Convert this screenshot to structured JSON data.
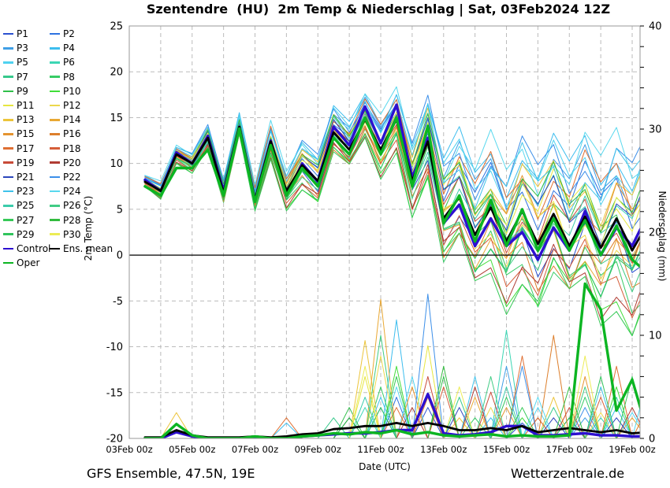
{
  "title": "Szentendre  (HU)  2m Temp & Niederschlag | Sat, 03Feb2024 12Z",
  "footer": {
    "left": "GFS Ensemble, 47.5N, 19E",
    "center": "Date (UTC)",
    "right": "Wetterzentrale.de"
  },
  "axes": {
    "ylabel_left": "2m Temp (°C)",
    "ylabel_right": "Niederschlag (mm)",
    "temp_ticks": [
      25,
      20,
      15,
      10,
      5,
      0,
      -5,
      -10,
      -15,
      -20
    ],
    "precip_ticks": [
      40,
      30,
      20,
      10,
      0
    ],
    "precip_minor_step": 2,
    "x_ticks": [
      {
        "label": "03Feb 00z",
        "day": 0
      },
      {
        "label": "05Feb 00z",
        "day": 2
      },
      {
        "label": "07Feb 00z",
        "day": 4
      },
      {
        "label": "09Feb 00z",
        "day": 6
      },
      {
        "label": "11Feb 00z",
        "day": 8
      },
      {
        "label": "13Feb 00z",
        "day": 10
      },
      {
        "label": "15Feb 00z",
        "day": 12
      },
      {
        "label": "17Feb 00z",
        "day": 14
      },
      {
        "label": "19Feb 00z",
        "day": 16
      }
    ],
    "x_grid_step_days": 1,
    "x_range_days": [
      0,
      16.25
    ]
  },
  "chart_data": {
    "type": "line",
    "x": [
      "03Feb 12z",
      "04Feb 00z",
      "04Feb 12z",
      "05Feb 00z",
      "05Feb 12z",
      "06Feb 00z",
      "06Feb 12z",
      "07Feb 00z",
      "07Feb 12z",
      "08Feb 00z",
      "08Feb 12z",
      "09Feb 00z",
      "09Feb 12z",
      "10Feb 00z",
      "10Feb 12z",
      "11Feb 00z",
      "11Feb 12z",
      "12Feb 00z",
      "12Feb 12z",
      "13Feb 00z",
      "13Feb 12z",
      "14Feb 00z",
      "14Feb 12z",
      "15Feb 00z",
      "15Feb 12z",
      "16Feb 00z",
      "16Feb 12z",
      "17Feb 00z",
      "17Feb 12z",
      "18Feb 00z",
      "18Feb 12z",
      "19Feb 00z",
      "19Feb 12z"
    ],
    "x_start_day": 0.5,
    "x_step_days": 0.5,
    "temp": {
      "ylim": [
        -20,
        25
      ],
      "grid_step": 5,
      "zero_line": true,
      "series": [
        {
          "name": "Ens. mean",
          "color": "#000000",
          "width": 2.8,
          "values": [
            8,
            7,
            11,
            10,
            12.8,
            6.8,
            14,
            6,
            12.4,
            7,
            9.8,
            8.1,
            13.4,
            11.5,
            14.8,
            11.5,
            14.8,
            8.1,
            12.4,
            4,
            6.3,
            2.2,
            5.2,
            1.5,
            4.8,
            1.2,
            4.5,
            1,
            4.2,
            0.8,
            4,
            0.5,
            3.5
          ]
        },
        {
          "name": "Control",
          "color": "#2d0fd0",
          "width": 3.4,
          "values": [
            8.2,
            7,
            11.2,
            10,
            13,
            7,
            14,
            6,
            12.5,
            6.5,
            10,
            8,
            14,
            12,
            16.2,
            12.2,
            16.4,
            8.5,
            12.8,
            3.5,
            5.5,
            1,
            4,
            1,
            2.5,
            -0.5,
            3,
            0.5,
            4.8,
            0,
            3,
            1,
            4.5
          ]
        },
        {
          "name": "Oper",
          "color": "#0cb522",
          "width": 3.4,
          "values": [
            7.5,
            6.5,
            9.5,
            9.5,
            11.5,
            6.5,
            13.8,
            5.8,
            12,
            6.5,
            9.5,
            7.5,
            12.8,
            11,
            15,
            11,
            15,
            7.5,
            14.1,
            3.5,
            6.5,
            1.5,
            6,
            1,
            5,
            0.5,
            4,
            0.5,
            3.8,
            0,
            3.2,
            -0.5,
            -2
          ]
        }
      ],
      "member_model": "value[i] = ens_mean[i] + temp_factor*spread_profile[i] + wiggle_amp*spread_profile[i]*sin(0.9*i + temp_phase)",
      "spread_profile": [
        0.5,
        0.7,
        0.7,
        0.8,
        1,
        1,
        1,
        1.2,
        1.5,
        1.5,
        2,
        2,
        2,
        2,
        2,
        2.5,
        2.5,
        3,
        3.5,
        4.5,
        5,
        5,
        5.5,
        5.5,
        6,
        6,
        6,
        6,
        6.5,
        6.5,
        7,
        7,
        7
      ],
      "wiggle_amp": 0.35
    },
    "precip": {
      "ylim": [
        0,
        40
      ],
      "series": [
        {
          "name": "Ens. mean",
          "color": "#000000",
          "width": 2.8,
          "values": [
            0.1,
            0.1,
            0.8,
            0.3,
            0.1,
            0.1,
            0.1,
            0.2,
            0.1,
            0.2,
            0.4,
            0.5,
            0.9,
            1,
            1.2,
            1.2,
            1.5,
            1.2,
            1.5,
            1.2,
            0.8,
            0.8,
            1,
            0.8,
            1.2,
            0.6,
            0.8,
            1,
            0.8,
            0.6,
            0.8,
            0.5,
            0.6
          ]
        },
        {
          "name": "Control",
          "color": "#2d0fd0",
          "width": 3.4,
          "values": [
            0,
            0,
            0.6,
            0.2,
            0,
            0,
            0,
            0.1,
            0,
            0,
            0.2,
            0.3,
            0.4,
            0.5,
            0.5,
            0.6,
            0.8,
            0.8,
            4.3,
            0.5,
            0.3,
            0.4,
            0.6,
            1.2,
            1.2,
            0.3,
            0.3,
            0.4,
            0.5,
            0.3,
            0.3,
            0.2,
            0.2
          ]
        },
        {
          "name": "Oper",
          "color": "#0cb522",
          "width": 3.4,
          "values": [
            0,
            0,
            1.4,
            0.3,
            0,
            0,
            0,
            0.2,
            0,
            0,
            0.2,
            0.3,
            0.5,
            0.4,
            0.6,
            0.5,
            0.8,
            0.4,
            0.6,
            0.3,
            0.2,
            0.3,
            0.4,
            0.2,
            0.3,
            0.2,
            0.2,
            0.3,
            15,
            12.5,
            2.7,
            5.7,
            0.5
          ]
        }
      ],
      "member_model": "zeros except listed [index, mm] spikes"
    },
    "members": [
      {
        "name": "P1",
        "color": "#2b50d0",
        "temp_factor": -0.3,
        "temp_phase": 0.5,
        "precip_spikes": [
          [
            13,
            2
          ],
          [
            18,
            3
          ],
          [
            24,
            1.5
          ]
        ]
      },
      {
        "name": "P2",
        "color": "#2e72e0",
        "temp_factor": 0.6,
        "temp_phase": 1.2,
        "precip_spikes": [
          [
            16,
            4
          ],
          [
            27,
            2
          ]
        ]
      },
      {
        "name": "P3",
        "color": "#3f9fe6",
        "temp_factor": 0.9,
        "temp_phase": 2.0,
        "precip_spikes": [
          [
            15,
            3
          ],
          [
            23,
            7
          ],
          [
            28,
            2
          ]
        ]
      },
      {
        "name": "P4",
        "color": "#3dbdee",
        "temp_factor": 1.2,
        "temp_phase": 2.6,
        "precip_spikes": [
          [
            9,
            1.5
          ],
          [
            16,
            11.5
          ],
          [
            22,
            2
          ],
          [
            30,
            3
          ]
        ]
      },
      {
        "name": "P5",
        "color": "#4fd2f0",
        "temp_factor": 1.0,
        "temp_phase": 3.1,
        "precip_spikes": [
          [
            17,
            6
          ],
          [
            25,
            3
          ],
          [
            31,
            2.5
          ]
        ]
      },
      {
        "name": "P6",
        "color": "#3cd6b4",
        "temp_factor": 0.4,
        "temp_phase": 3.8,
        "precip_spikes": [
          [
            2,
            1.5
          ],
          [
            14,
            3
          ],
          [
            23,
            10.5
          ],
          [
            29,
            2
          ]
        ]
      },
      {
        "name": "P7",
        "color": "#37c98c",
        "temp_factor": -0.5,
        "temp_phase": 4.2,
        "precip_spikes": [
          [
            12,
            2
          ],
          [
            20,
            4
          ],
          [
            26,
            3
          ]
        ]
      },
      {
        "name": "P8",
        "color": "#38cc66",
        "temp_factor": -0.8,
        "temp_phase": 0.9,
        "precip_spikes": [
          [
            15,
            5
          ],
          [
            21,
            2
          ],
          [
            28,
            4
          ]
        ]
      },
      {
        "name": "P9",
        "color": "#30bf4a",
        "temp_factor": 0.2,
        "temp_phase": 1.7,
        "precip_spikes": [
          [
            13,
            3
          ],
          [
            19,
            6
          ],
          [
            27,
            2
          ]
        ]
      },
      {
        "name": "P10",
        "color": "#40dd38",
        "temp_factor": -1.0,
        "temp_phase": 2.3,
        "precip_spikes": [
          [
            16,
            7
          ],
          [
            24,
            2
          ],
          [
            30,
            5
          ]
        ]
      },
      {
        "name": "P11",
        "color": "#e6e640",
        "temp_factor": 0.5,
        "temp_phase": 2.9,
        "precip_spikes": [
          [
            14,
            6
          ],
          [
            18,
            9
          ],
          [
            25,
            2
          ]
        ]
      },
      {
        "name": "P12",
        "color": "#ecd84c",
        "temp_factor": -0.2,
        "temp_phase": 3.4,
        "precip_spikes": [
          [
            15,
            8
          ],
          [
            22,
            3
          ],
          [
            29,
            2.5
          ]
        ]
      },
      {
        "name": "P13",
        "color": "#ecc43a",
        "temp_factor": 0.7,
        "temp_phase": 4.0,
        "precip_spikes": [
          [
            2,
            2.5
          ],
          [
            14,
            9.5
          ],
          [
            20,
            2
          ],
          [
            26,
            4
          ]
        ]
      },
      {
        "name": "P14",
        "color": "#e9a833",
        "temp_factor": -0.4,
        "temp_phase": 4.6,
        "precip_spikes": [
          [
            15,
            13.5
          ],
          [
            21,
            4
          ],
          [
            31,
            2
          ]
        ]
      },
      {
        "name": "P15",
        "color": "#e59430",
        "temp_factor": 0.3,
        "temp_phase": 5.2,
        "precip_spikes": [
          [
            17,
            5
          ],
          [
            23,
            3
          ],
          [
            28,
            6
          ]
        ]
      },
      {
        "name": "P16",
        "color": "#dd7f2c",
        "temp_factor": -0.6,
        "temp_phase": 0.3,
        "precip_spikes": [
          [
            18,
            4
          ],
          [
            26,
            10
          ],
          [
            32,
            3
          ]
        ]
      },
      {
        "name": "P17",
        "color": "#df6f33",
        "temp_factor": 0.8,
        "temp_phase": 1.1,
        "precip_spikes": [
          [
            9,
            2
          ],
          [
            16,
            3
          ],
          [
            24,
            8
          ],
          [
            30,
            7
          ]
        ]
      },
      {
        "name": "P18",
        "color": "#d55e39",
        "temp_factor": -0.7,
        "temp_phase": 1.9,
        "precip_spikes": [
          [
            19,
            5
          ],
          [
            25,
            2
          ],
          [
            29,
            4
          ]
        ]
      },
      {
        "name": "P19",
        "color": "#c84b38",
        "temp_factor": 0.1,
        "temp_phase": 2.5,
        "precip_spikes": [
          [
            18,
            6
          ],
          [
            22,
            4.5
          ],
          [
            27,
            3
          ]
        ]
      },
      {
        "name": "P20",
        "color": "#b03c34",
        "temp_factor": -0.9,
        "temp_phase": 3.2,
        "precip_spikes": [
          [
            17,
            3
          ],
          [
            21,
            5
          ],
          [
            31,
            3
          ]
        ]
      },
      {
        "name": "P21",
        "color": "#2b46bb",
        "temp_factor": 0.4,
        "temp_phase": 3.9,
        "precip_spikes": [
          [
            20,
            3
          ],
          [
            26,
            2
          ],
          [
            30,
            2
          ]
        ]
      },
      {
        "name": "P22",
        "color": "#3c8fe9",
        "temp_factor": 1.1,
        "temp_phase": 4.4,
        "precip_spikes": [
          [
            18,
            14
          ],
          [
            24,
            7
          ],
          [
            28,
            3
          ]
        ]
      },
      {
        "name": "P23",
        "color": "#3fc2ea",
        "temp_factor": 0.9,
        "temp_phase": 5.0,
        "precip_spikes": [
          [
            15,
            4
          ],
          [
            21,
            6
          ],
          [
            29,
            5
          ]
        ]
      },
      {
        "name": "P24",
        "color": "#58d8ee",
        "temp_factor": 1.2,
        "temp_phase": 0.6,
        "precip_spikes": [
          [
            16,
            5
          ],
          [
            25,
            4
          ],
          [
            32,
            6
          ]
        ]
      },
      {
        "name": "P25",
        "color": "#3bccab",
        "temp_factor": 0.0,
        "temp_phase": 1.4,
        "precip_spikes": [
          [
            14,
            4
          ],
          [
            23,
            5
          ],
          [
            30,
            4
          ]
        ]
      },
      {
        "name": "P26",
        "color": "#41cc85",
        "temp_factor": -0.3,
        "temp_phase": 2.1,
        "precip_spikes": [
          [
            15,
            10
          ],
          [
            22,
            6
          ],
          [
            28,
            5
          ]
        ]
      },
      {
        "name": "P27",
        "color": "#36c957",
        "temp_factor": -1.1,
        "temp_phase": 2.8,
        "precip_spikes": [
          [
            16,
            6
          ],
          [
            24,
            3
          ],
          [
            31,
            6
          ]
        ]
      },
      {
        "name": "P28",
        "color": "#32bb3e",
        "temp_factor": 0.6,
        "temp_phase": 3.5,
        "precip_spikes": [
          [
            13,
            2
          ],
          [
            19,
            7
          ],
          [
            27,
            5
          ]
        ]
      },
      {
        "name": "P29",
        "color": "#31c45c",
        "temp_factor": -0.5,
        "temp_phase": 4.1,
        "precip_spikes": [
          [
            15,
            3
          ],
          [
            23,
            4
          ],
          [
            29,
            6
          ]
        ]
      },
      {
        "name": "P30",
        "color": "#ecec55",
        "temp_factor": 0.2,
        "temp_phase": 4.8,
        "precip_spikes": [
          [
            14,
            7
          ],
          [
            20,
            5
          ],
          [
            28,
            8
          ]
        ]
      }
    ]
  },
  "legend": {
    "extra": [
      {
        "name": "Control",
        "color": "#2d0fd0"
      },
      {
        "name": "Ens. mean",
        "color": "#000000"
      },
      {
        "name": "Oper",
        "color": "#0cb522"
      }
    ]
  },
  "style": {
    "frame_color": "#999999",
    "grid_color": "#bbbbbb",
    "zero_line_color": "#000000",
    "member_width": 1
  }
}
